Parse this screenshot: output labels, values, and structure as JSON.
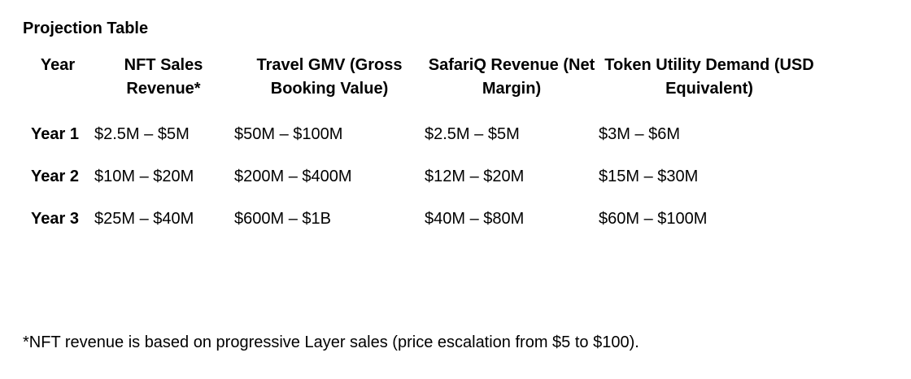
{
  "title": "Projection Table",
  "table": {
    "headers": [
      "Year",
      "NFT Sales Revenue*",
      "Travel GMV (Gross Booking Value)",
      "SafariQ Revenue (Net Margin)",
      "Token Utility Demand (USD Equivalent)"
    ],
    "rows": [
      [
        "Year 1",
        "$2.5M – $5M",
        "$50M – $100M",
        "$2.5M – $5M",
        "$3M – $6M"
      ],
      [
        "Year 2",
        "$10M – $20M",
        "$200M – $400M",
        "$12M – $20M",
        "$15M – $30M"
      ],
      [
        "Year 3",
        "$25M – $40M",
        "$600M – $1B",
        "$40M – $80M",
        "$60M – $100M"
      ]
    ]
  },
  "footnote": "*NFT revenue is based on progressive Layer sales (price escalation from $5 to $100)."
}
